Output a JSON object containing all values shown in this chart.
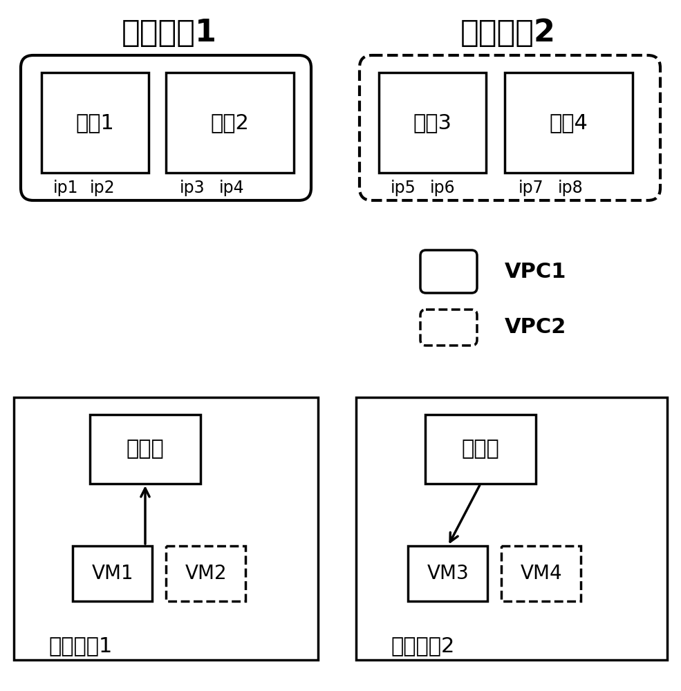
{
  "bg_color": "#ffffff",
  "text_color": "#000000",
  "cluster1_title": "网关集群1",
  "cluster2_title": "网关集群2",
  "gw1_label": "网关1",
  "gw2_label": "网关2",
  "gw3_label": "网关3",
  "gw4_label": "网关4",
  "ip1": "ip1",
  "ip2": "ip2",
  "ip3": "ip3",
  "ip4": "ip4",
  "ip5": "ip5",
  "ip6": "ip6",
  "ip7": "ip7",
  "ip8": "ip8",
  "legend_vpc1": "VPC1",
  "legend_vpc2": "VPC2",
  "node1_title": "计算节点1",
  "node2_title": "计算节点2",
  "fwd_table": "转发表",
  "vm1_label": "VM1",
  "vm2_label": "VM2",
  "vm3_label": "VM3",
  "vm4_label": "VM4",
  "font_size_cluster_title": 32,
  "font_size_gw": 22,
  "font_size_ip": 17,
  "font_size_legend_text": 22,
  "font_size_node_title": 22,
  "font_size_vm": 20,
  "font_size_fwd": 22
}
